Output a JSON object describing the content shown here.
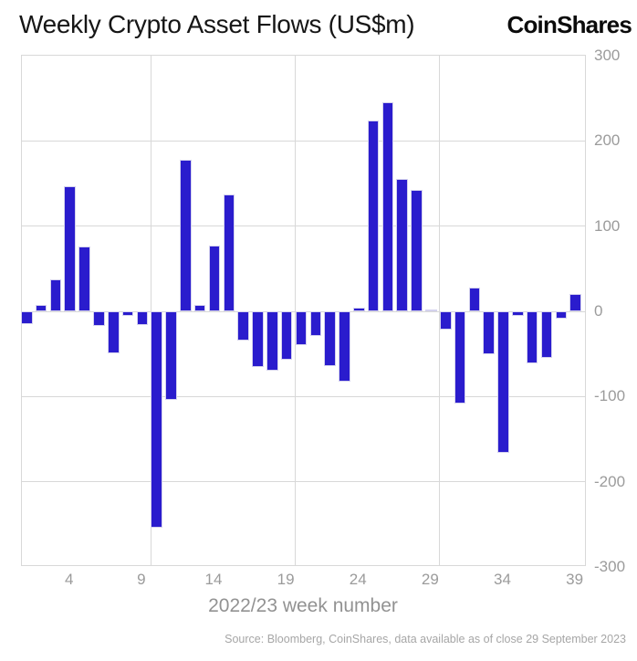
{
  "header": {
    "title": "Weekly Crypto Asset Flows (US$m)",
    "brand": "CoinShares"
  },
  "chart_data": {
    "type": "bar",
    "title": "Weekly Crypto Asset Flows (US$m)",
    "xlabel": "2022/23 week number",
    "ylabel": "",
    "x": [
      1,
      2,
      3,
      4,
      5,
      6,
      7,
      8,
      9,
      10,
      11,
      12,
      13,
      14,
      15,
      16,
      17,
      18,
      19,
      20,
      21,
      22,
      23,
      24,
      25,
      26,
      27,
      28,
      29,
      30,
      31,
      32,
      33,
      34,
      35,
      36,
      37,
      38,
      39
    ],
    "values": [
      -15,
      7,
      37,
      147,
      76,
      -17,
      -49,
      -5,
      -16,
      -254,
      -104,
      178,
      7,
      77,
      137,
      -34,
      -65,
      -70,
      -57,
      -40,
      -29,
      -64,
      -82,
      4,
      224,
      245,
      155,
      142,
      2,
      -21,
      -108,
      28,
      -50,
      -166,
      -5,
      -61,
      -55,
      -9,
      20
    ],
    "x_ticks": [
      4,
      9,
      14,
      19,
      24,
      29,
      34,
      39
    ],
    "y_ticks": [
      300,
      200,
      100,
      0,
      -100,
      -200,
      -300
    ],
    "ylim": [
      -300,
      300
    ],
    "grid": true,
    "legend": "none",
    "vgrid_weeks": [
      9.6,
      19.6,
      29.6
    ],
    "bar_color": "#2a1ccd",
    "bar_border_color": "#d4d2ee",
    "grid_color": "#d8d8d8",
    "tick_color": "#9b9b9b"
  },
  "footer": {
    "source": "Source: Bloomberg, CoinShares, data available as of close 29 September 2023"
  }
}
